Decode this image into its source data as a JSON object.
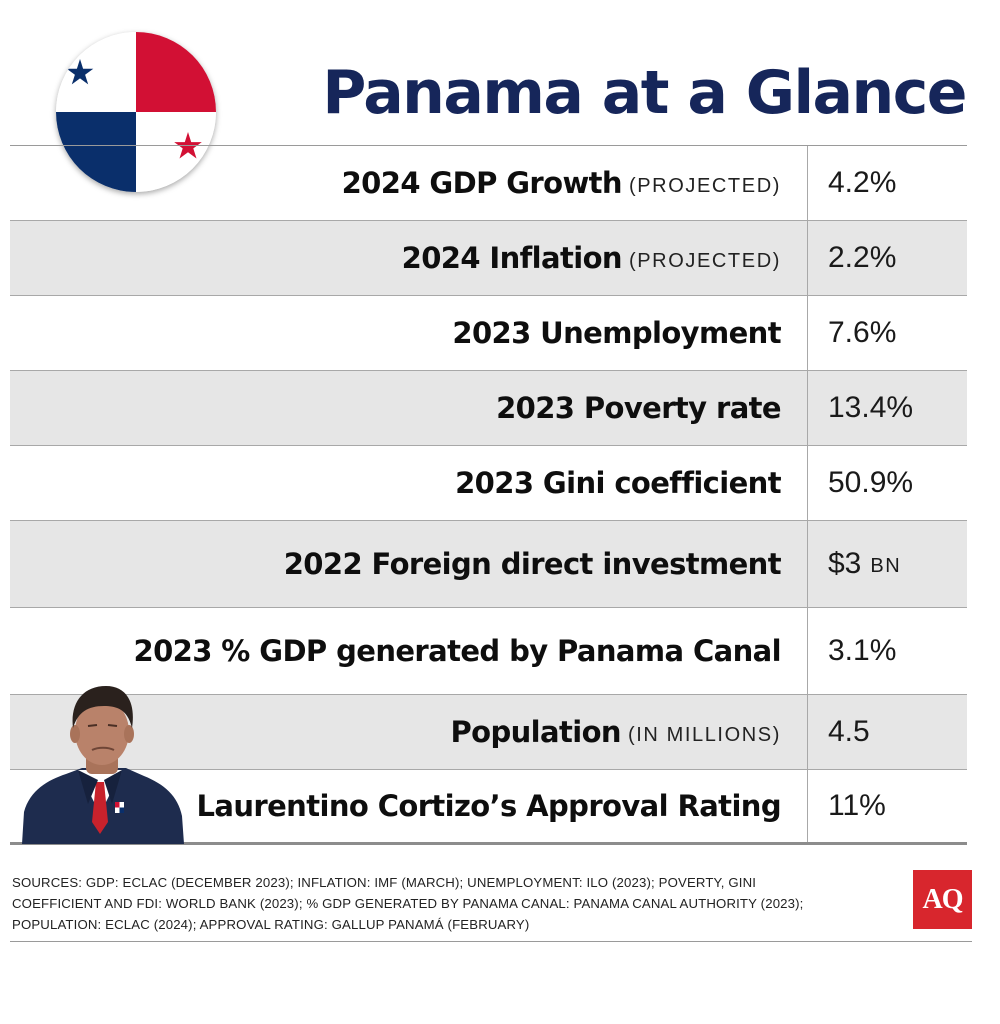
{
  "title": "Panama at a Glance",
  "colors": {
    "title_navy": "#16265a",
    "flag_red": "#d21034",
    "flag_blue": "#0a2f6b",
    "shade": "#e6e6e6",
    "logo_red": "#d8262d"
  },
  "rows": [
    {
      "label": "2024 GDP Growth",
      "note": "(PROJECTED)",
      "value": "4.2%",
      "unit": ""
    },
    {
      "label": "2024 Inflation",
      "note": "(PROJECTED)",
      "value": "2.2%",
      "unit": ""
    },
    {
      "label": "2023 Unemployment",
      "note": "",
      "value": "7.6%",
      "unit": ""
    },
    {
      "label": "2023 Poverty rate",
      "note": "",
      "value": "13.4%",
      "unit": ""
    },
    {
      "label": "2023 Gini coefficient",
      "note": "",
      "value": "50.9%",
      "unit": ""
    },
    {
      "label": "2022 Foreign direct investment",
      "note": "",
      "value": "$3",
      "unit": "BN"
    },
    {
      "label": "2023 % GDP generated by Panama Canal",
      "note": "",
      "value": "3.1%",
      "unit": ""
    },
    {
      "label": "Population",
      "note": "(IN MILLIONS)",
      "value": "4.5",
      "unit": ""
    },
    {
      "label": "Laurentino Cortizo’s Approval Rating",
      "note": "",
      "value": "11%",
      "unit": ""
    }
  ],
  "sources": "SOURCES: GDP: ECLAC (DECEMBER 2023); INFLATION: IMF (MARCH); UNEMPLOYMENT: ILO (2023); POVERTY, GINI COEFFICIENT AND FDI: WORLD BANK (2023); % GDP GENERATED BY PANAMA CANAL: PANAMA CANAL AUTHORITY (2023); POPULATION: ECLAC (2024); APPROVAL RATING: GALLUP PANAMÁ (FEBRUARY)",
  "logo": "AQ"
}
